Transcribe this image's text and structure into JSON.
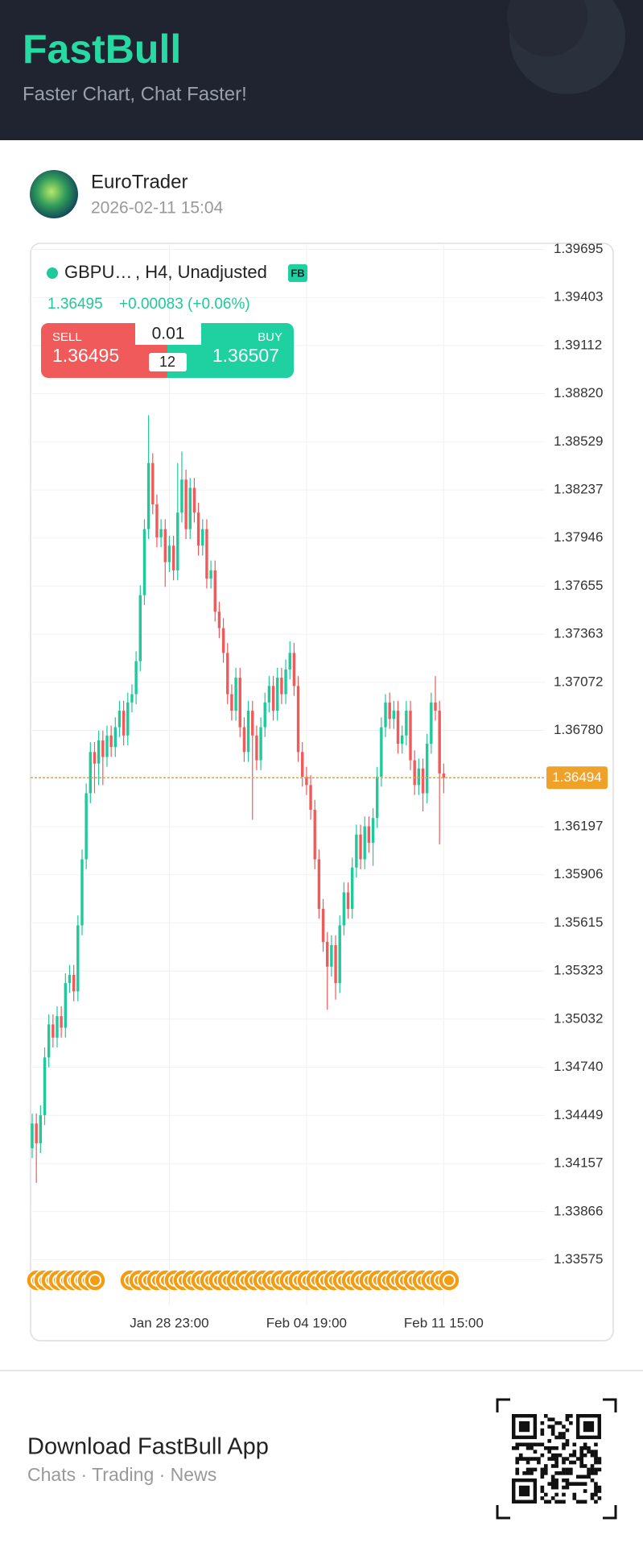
{
  "header": {
    "title": "FastBull",
    "tagline": "Faster Chart, Chat Faster!"
  },
  "post": {
    "author": "EuroTrader",
    "time": "2026-02-11 15:04"
  },
  "chart_data": {
    "type": "candlestick",
    "symbol": "GBPU…",
    "details": ", H4, Unadjusted",
    "badge": "FB",
    "last_price": 1.36495,
    "change": "+0.00083 (+0.06%)",
    "sell_label": "SELL",
    "sell_price": 1.36495,
    "buy_label": "BUY",
    "buy_price": 1.36507,
    "lot": "0.01",
    "spread": 12,
    "current_price": 1.36494,
    "x": [
      null,
      null,
      null,
      null,
      null,
      null,
      null,
      null,
      null,
      null,
      null,
      null,
      null,
      null,
      null,
      null,
      null,
      null,
      null,
      null,
      null,
      null,
      null,
      null,
      null,
      null,
      null,
      null,
      null,
      null,
      null,
      null,
      null,
      "Jan 28 23:00",
      null,
      null,
      null,
      null,
      null,
      null,
      null,
      null,
      null,
      null,
      null,
      null,
      null,
      null,
      null,
      null,
      null,
      null,
      null,
      null,
      null,
      null,
      null,
      null,
      null,
      null,
      null,
      null,
      null,
      null,
      null,
      null,
      "Feb 04 19:00",
      null,
      null,
      null,
      null,
      null,
      null,
      null,
      null,
      null,
      null,
      null,
      null,
      null,
      null,
      null,
      null,
      null,
      null,
      null,
      null,
      null,
      null,
      null,
      null,
      null,
      null,
      null,
      null,
      null,
      null,
      null,
      null,
      "Feb 11 15:00"
    ],
    "open": [
      1.3425,
      1.344,
      1.3428,
      1.3445,
      1.348,
      1.35,
      1.3492,
      1.3505,
      1.3498,
      1.3525,
      1.353,
      1.352,
      1.356,
      1.36,
      1.364,
      1.3665,
      1.3658,
      1.3672,
      1.3662,
      1.3675,
      1.3668,
      1.368,
      1.369,
      1.3675,
      1.3695,
      1.37,
      1.372,
      1.376,
      1.38,
      1.384,
      1.3815,
      1.3795,
      1.38,
      1.378,
      1.379,
      1.3775,
      1.381,
      1.383,
      1.38,
      1.3825,
      1.381,
      1.379,
      1.38,
      1.377,
      1.3775,
      1.375,
      1.374,
      1.3725,
      1.37,
      1.369,
      1.371,
      1.368,
      1.3665,
      1.369,
      1.3675,
      1.366,
      1.368,
      1.3695,
      1.3705,
      1.369,
      1.371,
      1.37,
      1.3715,
      1.3725,
      1.3705,
      1.3665,
      1.365,
      1.3645,
      1.363,
      1.36,
      1.357,
      1.355,
      1.3535,
      1.3548,
      1.3525,
      1.356,
      1.358,
      1.357,
      1.3595,
      1.3615,
      1.36,
      1.362,
      1.361,
      1.3625,
      1.365,
      1.368,
      1.3695,
      1.3685,
      1.369,
      1.367,
      1.3675,
      1.369,
      1.366,
      1.3645,
      1.3655,
      1.364,
      1.367,
      1.3695,
      1.369,
      1.3652
    ],
    "high": [
      1.3446,
      1.3446,
      1.3451,
      1.3486,
      1.3506,
      1.3506,
      1.3511,
      1.3511,
      1.3531,
      1.3536,
      1.3536,
      1.3566,
      1.3606,
      1.3646,
      1.3671,
      1.3671,
      1.3678,
      1.3678,
      1.3681,
      1.3681,
      1.3686,
      1.3696,
      1.3696,
      1.3701,
      1.3706,
      1.3726,
      1.3766,
      1.3806,
      1.3869,
      1.3846,
      1.3821,
      1.3806,
      1.3806,
      1.3796,
      1.3796,
      1.384,
      1.3847,
      1.3836,
      1.3831,
      1.3831,
      1.3816,
      1.3806,
      1.3806,
      1.3781,
      1.3781,
      1.3756,
      1.3746,
      1.3731,
      1.3706,
      1.3716,
      1.3716,
      1.3686,
      1.3696,
      1.3696,
      1.3681,
      1.3686,
      1.3701,
      1.3711,
      1.3711,
      1.3716,
      1.3716,
      1.3721,
      1.3732,
      1.3731,
      1.3711,
      1.3671,
      1.3656,
      1.3651,
      1.3636,
      1.3606,
      1.3576,
      1.3556,
      1.3554,
      1.3554,
      1.3566,
      1.3586,
      1.3586,
      1.3601,
      1.3621,
      1.3621,
      1.3626,
      1.3626,
      1.3631,
      1.3656,
      1.3686,
      1.37,
      1.3701,
      1.3696,
      1.3696,
      1.3681,
      1.3696,
      1.3696,
      1.3666,
      1.3661,
      1.3661,
      1.3676,
      1.3701,
      1.3711,
      1.3696,
      1.3658
    ],
    "low": [
      1.3419,
      1.3404,
      1.3422,
      1.3439,
      1.3474,
      1.3486,
      1.3486,
      1.3492,
      1.3492,
      1.3519,
      1.3514,
      1.3514,
      1.3554,
      1.3594,
      1.3634,
      1.364,
      1.3645,
      1.3645,
      1.3656,
      1.3662,
      1.3662,
      1.3674,
      1.3669,
      1.3669,
      1.3689,
      1.3694,
      1.3714,
      1.3754,
      1.3794,
      1.3809,
      1.3789,
      1.3789,
      1.3765,
      1.3774,
      1.3769,
      1.3769,
      1.3804,
      1.3794,
      1.3794,
      1.3804,
      1.3784,
      1.3784,
      1.3764,
      1.3764,
      1.3744,
      1.3734,
      1.3719,
      1.3694,
      1.3684,
      1.3684,
      1.3674,
      1.3659,
      1.3659,
      1.3624,
      1.3654,
      1.3654,
      1.3674,
      1.3689,
      1.3684,
      1.3684,
      1.3694,
      1.3694,
      1.3709,
      1.3699,
      1.3659,
      1.3644,
      1.3639,
      1.3624,
      1.3594,
      1.3564,
      1.3544,
      1.3509,
      1.3529,
      1.3515,
      1.3519,
      1.3554,
      1.3564,
      1.3564,
      1.3589,
      1.3594,
      1.3594,
      1.3604,
      1.3596,
      1.3619,
      1.3644,
      1.3674,
      1.3679,
      1.3679,
      1.3664,
      1.3664,
      1.3669,
      1.3654,
      1.3639,
      1.3639,
      1.3629,
      1.3634,
      1.3664,
      1.3684,
      1.3609,
      1.364
    ],
    "close": [
      1.344,
      1.3428,
      1.3445,
      1.348,
      1.35,
      1.3492,
      1.3505,
      1.3498,
      1.3525,
      1.353,
      1.352,
      1.356,
      1.36,
      1.364,
      1.3665,
      1.3658,
      1.3672,
      1.3662,
      1.3675,
      1.3668,
      1.368,
      1.369,
      1.3675,
      1.3695,
      1.37,
      1.372,
      1.376,
      1.38,
      1.384,
      1.3815,
      1.3795,
      1.38,
      1.378,
      1.379,
      1.3775,
      1.381,
      1.383,
      1.38,
      1.3825,
      1.381,
      1.379,
      1.38,
      1.377,
      1.3775,
      1.375,
      1.374,
      1.3725,
      1.37,
      1.369,
      1.371,
      1.368,
      1.3665,
      1.369,
      1.3675,
      1.366,
      1.368,
      1.3695,
      1.3705,
      1.369,
      1.371,
      1.37,
      1.3715,
      1.3725,
      1.3705,
      1.3665,
      1.365,
      1.3645,
      1.363,
      1.36,
      1.357,
      1.355,
      1.3535,
      1.3548,
      1.3525,
      1.356,
      1.358,
      1.357,
      1.3595,
      1.3615,
      1.36,
      1.362,
      1.361,
      1.3625,
      1.365,
      1.368,
      1.3695,
      1.3685,
      1.369,
      1.367,
      1.3675,
      1.369,
      1.366,
      1.3645,
      1.3655,
      1.364,
      1.367,
      1.3695,
      1.369,
      1.3652,
      1.36495
    ],
    "ylim": [
      1.33533,
      1.39731
    ],
    "yticks": [
      1.39695,
      1.39403,
      1.39112,
      {
        "value": 1.3882,
        "label": "1.38820"
      },
      1.38529,
      1.38237,
      1.37946,
      1.37655,
      1.37363,
      1.37072,
      {
        "value": 1.3678,
        "label": "1.36780"
      },
      1.36197,
      1.35906,
      1.35615,
      1.35323,
      1.35032,
      {
        "value": 1.3474,
        "label": "1.34740"
      },
      1.34449,
      1.34157,
      1.33866,
      1.33575
    ],
    "up_color": "#1fc99a",
    "down_color": "#ef5b5b",
    "price_line_color": "#f0a12a",
    "grid": true
  },
  "footer": {
    "title": "Download FastBull App",
    "subtitle": "Chats · Trading · News"
  }
}
